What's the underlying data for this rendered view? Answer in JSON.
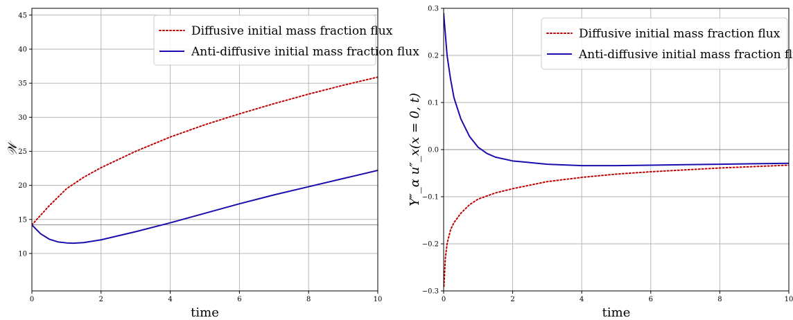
{
  "chart_data": [
    {
      "type": "line",
      "xlabel": "time",
      "ylabel": "𝒲",
      "xlim": [
        0,
        10
      ],
      "ylim": [
        4.5,
        46
      ],
      "xticks": [
        "0",
        "2",
        "4",
        "6",
        "8",
        "10"
      ],
      "yticks": [
        "10",
        "15",
        "20",
        "25",
        "30",
        "35",
        "40",
        "45"
      ],
      "grid": true,
      "legend_position": "top-right",
      "hline": 14.2,
      "series": [
        {
          "name": "Diffusive initial mass fraction flux",
          "style": "dotted",
          "color": "#c00000",
          "x": [
            0,
            0.25,
            0.5,
            1,
            1.5,
            2,
            3,
            4,
            5,
            6,
            7,
            8,
            9,
            10
          ],
          "y": [
            14.2,
            15.6,
            17.0,
            19.5,
            21.2,
            22.6,
            25.0,
            27.1,
            28.9,
            30.5,
            32.0,
            33.4,
            34.7,
            35.9
          ]
        },
        {
          "name": "Anti-diffusive initial mass fraction flux",
          "style": "solid",
          "color": "#1a0dab",
          "x": [
            0,
            0.25,
            0.5,
            0.75,
            1,
            1.2,
            1.5,
            2,
            3,
            4,
            5,
            6,
            7,
            8,
            9,
            10
          ],
          "y": [
            14.2,
            12.9,
            12.1,
            11.7,
            11.55,
            11.5,
            11.6,
            12.0,
            13.2,
            14.5,
            15.9,
            17.3,
            18.6,
            19.8,
            21.0,
            22.2
          ]
        }
      ]
    },
    {
      "type": "line",
      "xlabel": "time",
      "ylabel": "Y″_α u″_x(x = 0, t)",
      "xlim": [
        0,
        10
      ],
      "ylim": [
        -0.3,
        0.3
      ],
      "xticks": [
        "0",
        "2",
        "4",
        "6",
        "8",
        "10"
      ],
      "yticks": [
        "−0.3",
        "−0.2",
        "−0.1",
        "0.0",
        "0.1",
        "0.2",
        "0.3"
      ],
      "grid": true,
      "legend_position": "top-right",
      "hline": 0,
      "series": [
        {
          "name": "Diffusive initial mass fraction flux",
          "style": "dotted",
          "color": "#c00000",
          "x": [
            0.01,
            0.05,
            0.1,
            0.2,
            0.3,
            0.5,
            0.75,
            1,
            1.5,
            2,
            3,
            4,
            5,
            6,
            7,
            8,
            9,
            10
          ],
          "y": [
            -0.29,
            -0.23,
            -0.2,
            -0.17,
            -0.155,
            -0.135,
            -0.117,
            -0.105,
            -0.092,
            -0.083,
            -0.068,
            -0.059,
            -0.052,
            -0.047,
            -0.043,
            -0.039,
            -0.036,
            -0.033
          ]
        },
        {
          "name": "Anti-diffusive initial mass fraction flux",
          "style": "solid",
          "color": "#1a0dab",
          "x": [
            0,
            0.1,
            0.2,
            0.3,
            0.5,
            0.75,
            1,
            1.25,
            1.5,
            2,
            3,
            4,
            5,
            6,
            7,
            8,
            9,
            10
          ],
          "y": [
            0.29,
            0.2,
            0.15,
            0.11,
            0.065,
            0.028,
            0.005,
            -0.008,
            -0.016,
            -0.024,
            -0.031,
            -0.034,
            -0.034,
            -0.033,
            -0.032,
            -0.031,
            -0.03,
            -0.029
          ]
        }
      ]
    }
  ]
}
